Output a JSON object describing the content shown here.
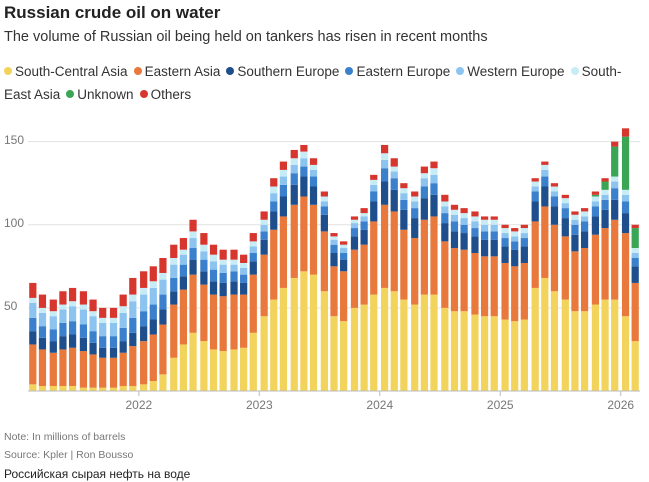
{
  "chart_data": {
    "type": "stacked-bar",
    "title": "Russian crude oil on water",
    "subtitle": "The volume of Russian oil being held on tankers has risen in recent months",
    "notes": [
      "Note: In millions of barrels",
      "Source: Kpler | Ron Bousso",
      "Российская сырая нефть на воде"
    ],
    "x": [
      2021.12,
      2021.2,
      2021.29,
      2021.37,
      2021.45,
      2021.54,
      2021.62,
      2021.7,
      2021.79,
      2021.87,
      2021.95,
      2022.04,
      2022.12,
      2022.2,
      2022.29,
      2022.37,
      2022.45,
      2022.54,
      2022.62,
      2022.7,
      2022.79,
      2022.87,
      2022.95,
      2023.04,
      2023.12,
      2023.2,
      2023.29,
      2023.37,
      2023.45,
      2023.54,
      2023.62,
      2023.7,
      2023.79,
      2023.87,
      2023.95,
      2024.04,
      2024.12,
      2024.2,
      2024.29,
      2024.37,
      2024.45,
      2024.54,
      2024.62,
      2024.7,
      2024.79,
      2024.87,
      2024.95,
      2025.04,
      2025.12,
      2025.2,
      2025.29,
      2025.37,
      2025.45,
      2025.54,
      2025.62,
      2025.7,
      2025.79,
      2025.87,
      2025.95,
      2026.04,
      2026.12
    ],
    "xlim": [
      2021.08,
      2026.16
    ],
    "xticks": [
      2022,
      2023,
      2024,
      2025,
      2026
    ],
    "ylim": [
      0,
      160
    ],
    "yticks": [
      50,
      100,
      150
    ],
    "grid": true,
    "series": [
      {
        "name": "South-Central Asia",
        "color": "#f2d35c",
        "values": [
          4,
          3,
          3,
          3,
          3,
          2,
          2,
          2,
          2,
          3,
          3,
          4,
          6,
          10,
          20,
          28,
          35,
          30,
          25,
          24,
          25,
          26,
          35,
          45,
          55,
          62,
          68,
          72,
          70,
          60,
          45,
          42,
          50,
          52,
          58,
          62,
          60,
          55,
          52,
          58,
          58,
          50,
          48,
          48,
          46,
          45,
          45,
          43,
          42,
          43,
          62,
          68,
          60,
          55,
          48,
          48,
          52,
          55,
          55,
          45,
          30
        ]
      },
      {
        "name": "Eastern Asia",
        "color": "#e8783b",
        "values": [
          24,
          22,
          20,
          22,
          23,
          22,
          20,
          18,
          18,
          20,
          24,
          26,
          28,
          30,
          32,
          33,
          35,
          34,
          33,
          33,
          33,
          32,
          35,
          37,
          42,
          43,
          44,
          45,
          42,
          36,
          30,
          30,
          35,
          36,
          44,
          50,
          48,
          42,
          40,
          45,
          47,
          40,
          38,
          37,
          37,
          36,
          36,
          34,
          33,
          34,
          40,
          43,
          40,
          38,
          36,
          38,
          42,
          43,
          48,
          50,
          35
        ]
      },
      {
        "name": "Southern Europe",
        "color": "#1f4e8c",
        "values": [
          8,
          7,
          7,
          8,
          8,
          8,
          7,
          6,
          6,
          7,
          8,
          9,
          9,
          9,
          8,
          8,
          9,
          8,
          8,
          8,
          8,
          7,
          8,
          9,
          11,
          12,
          12,
          12,
          11,
          10,
          8,
          7,
          8,
          9,
          12,
          14,
          13,
          12,
          12,
          13,
          13,
          11,
          10,
          10,
          10,
          10,
          10,
          10,
          10,
          10,
          12,
          12,
          11,
          11,
          10,
          10,
          11,
          11,
          12,
          12,
          10
        ]
      },
      {
        "name": "Eastern Europe",
        "color": "#3a80cc",
        "values": [
          8,
          7,
          7,
          8,
          8,
          8,
          7,
          7,
          7,
          8,
          9,
          9,
          9,
          9,
          8,
          7,
          7,
          7,
          7,
          6,
          6,
          5,
          5,
          5,
          6,
          7,
          7,
          6,
          6,
          5,
          5,
          4,
          5,
          5,
          6,
          8,
          7,
          6,
          6,
          7,
          7,
          6,
          6,
          5,
          5,
          5,
          5,
          5,
          5,
          5,
          6,
          6,
          6,
          6,
          6,
          6,
          6,
          6,
          7,
          7,
          5
        ]
      },
      {
        "name": "Western Europe",
        "color": "#8cc4ef",
        "values": [
          9,
          8,
          8,
          8,
          9,
          9,
          9,
          8,
          8,
          9,
          10,
          10,
          10,
          9,
          8,
          6,
          6,
          5,
          5,
          5,
          4,
          4,
          4,
          4,
          5,
          5,
          5,
          5,
          4,
          3,
          3,
          3,
          3,
          3,
          4,
          5,
          4,
          4,
          4,
          5,
          5,
          4,
          4,
          4,
          4,
          4,
          4,
          3,
          3,
          3,
          3,
          4,
          3,
          3,
          3,
          3,
          3,
          3,
          4,
          4,
          3
        ]
      },
      {
        "name": "South-East Asia",
        "color": "#c8ecf5",
        "values": [
          3,
          3,
          3,
          3,
          3,
          3,
          3,
          3,
          3,
          4,
          4,
          4,
          4,
          4,
          4,
          3,
          4,
          4,
          4,
          3,
          3,
          3,
          3,
          3,
          4,
          4,
          4,
          4,
          3,
          3,
          2,
          2,
          2,
          2,
          3,
          4,
          3,
          3,
          3,
          3,
          4,
          3,
          3,
          3,
          3,
          3,
          3,
          3,
          3,
          3,
          3,
          3,
          3,
          3,
          3,
          3,
          3,
          3,
          3,
          3,
          3
        ]
      },
      {
        "name": "Unknown",
        "color": "#3aa655",
        "values": [
          0,
          0,
          0,
          0,
          0,
          0,
          0,
          0,
          0,
          0,
          0,
          0,
          0,
          0,
          0,
          0,
          0,
          0,
          0,
          0,
          0,
          0,
          0,
          0,
          0,
          0,
          0,
          0,
          0,
          0,
          0,
          0,
          0,
          0,
          0,
          0,
          0,
          0,
          0,
          0,
          0,
          0,
          0,
          0,
          0,
          0,
          0,
          0,
          0,
          0,
          0,
          0,
          0,
          0,
          0,
          0,
          1,
          5,
          18,
          32,
          12
        ]
      },
      {
        "name": "Others",
        "color": "#d6362e",
        "values": [
          9,
          8,
          7,
          8,
          8,
          8,
          7,
          6,
          6,
          7,
          10,
          10,
          9,
          9,
          8,
          7,
          7,
          7,
          6,
          6,
          6,
          5,
          5,
          5,
          5,
          5,
          5,
          4,
          4,
          3,
          2,
          2,
          2,
          3,
          3,
          5,
          5,
          3,
          3,
          4,
          4,
          4,
          3,
          3,
          3,
          2,
          2,
          2,
          2,
          2,
          2,
          2,
          2,
          2,
          2,
          2,
          2,
          2,
          3,
          5,
          2
        ]
      }
    ]
  }
}
